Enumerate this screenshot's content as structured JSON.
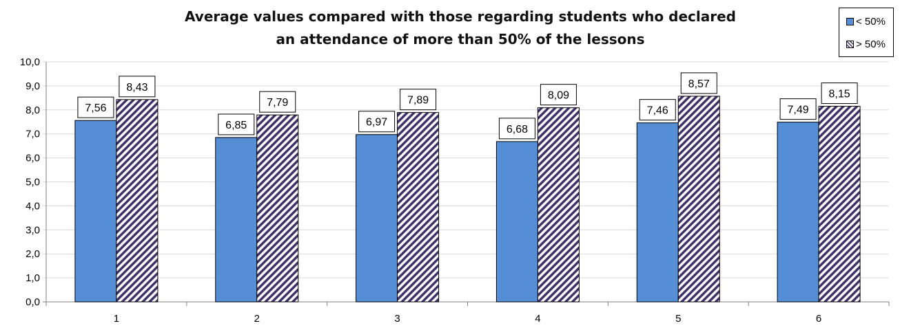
{
  "chart_data": {
    "type": "bar",
    "title_lines": [
      "Average values compared with those regarding students who declared",
      "an attendance of more than 50% of the lessons"
    ],
    "categories": [
      "1",
      "2",
      "3",
      "4",
      "5",
      "6"
    ],
    "series": [
      {
        "name": "< 50%",
        "values": [
          7.56,
          6.85,
          6.97,
          6.68,
          7.46,
          7.49
        ],
        "labels": [
          "7,56",
          "6,85",
          "6,97",
          "6,68",
          "7,46",
          "7,49"
        ],
        "fill": "#558ed5",
        "pattern": "solid"
      },
      {
        "name": "> 50%",
        "values": [
          8.43,
          7.79,
          7.89,
          8.09,
          8.57,
          8.15
        ],
        "labels": [
          "8,43",
          "7,79",
          "7,89",
          "8,09",
          "8,57",
          "8,15"
        ],
        "fill": "#403068",
        "pattern": "diagonal-stripes"
      }
    ],
    "y_ticks": [
      "0,0",
      "1,0",
      "2,0",
      "3,0",
      "4,0",
      "5,0",
      "6,0",
      "7,0",
      "8,0",
      "9,0",
      "10,0"
    ],
    "ylim": [
      0,
      10
    ],
    "ystep": 1,
    "grid": true,
    "legend_position": "top-right"
  }
}
